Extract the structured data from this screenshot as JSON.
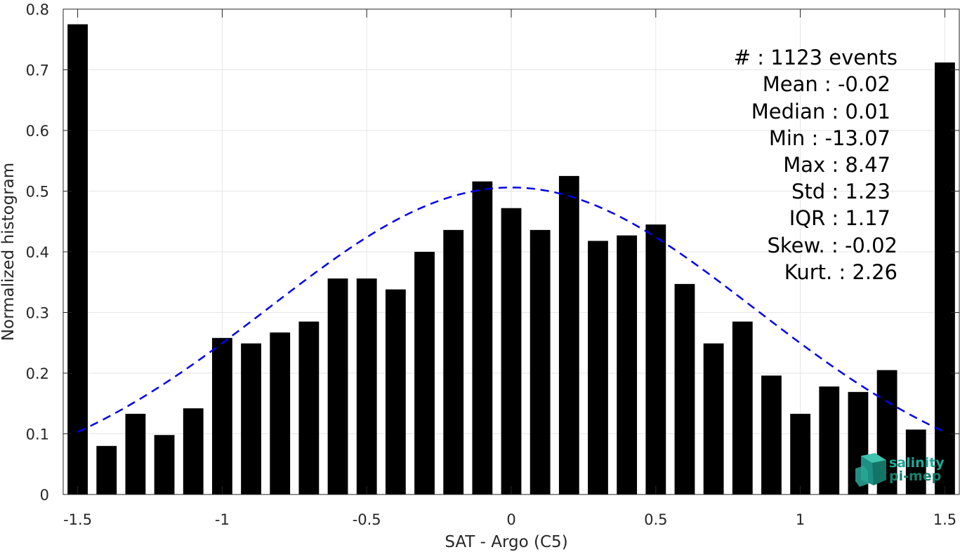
{
  "chart_data": {
    "type": "bar",
    "title": "",
    "xlabel": "SAT - Argo (C5)",
    "ylabel": "Normalized histogram",
    "xlim": [
      -1.55,
      1.55
    ],
    "ylim": [
      0,
      0.8
    ],
    "grid": true,
    "x_ticks": [
      {
        "value": -1.5,
        "label": "-1.5"
      },
      {
        "value": -1,
        "label": "-1"
      },
      {
        "value": -0.5,
        "label": "-0.5"
      },
      {
        "value": 0,
        "label": "0"
      },
      {
        "value": 0.5,
        "label": "0.5"
      },
      {
        "value": 1,
        "label": "1"
      },
      {
        "value": 1.5,
        "label": "1.5"
      }
    ],
    "y_ticks": [
      {
        "value": 0,
        "label": "0"
      },
      {
        "value": 0.1,
        "label": "0.1"
      },
      {
        "value": 0.2,
        "label": "0.2"
      },
      {
        "value": 0.3,
        "label": "0.3"
      },
      {
        "value": 0.4,
        "label": "0.4"
      },
      {
        "value": 0.5,
        "label": "0.5"
      },
      {
        "value": 0.6,
        "label": "0.6"
      },
      {
        "value": 0.7,
        "label": "0.7"
      },
      {
        "value": 0.8,
        "label": "0.8"
      }
    ],
    "bar_color": "#000000",
    "bars": {
      "x": [
        -1.5,
        -1.4,
        -1.3,
        -1.2,
        -1.1,
        -1.0,
        -0.9,
        -0.8,
        -0.7,
        -0.6,
        -0.5,
        -0.4,
        -0.3,
        -0.2,
        -0.1,
        0.0,
        0.1,
        0.2,
        0.3,
        0.4,
        0.5,
        0.6,
        0.7,
        0.8,
        0.9,
        1.0,
        1.1,
        1.2,
        1.3,
        1.4,
        1.5
      ],
      "values": [
        0.775,
        0.08,
        0.133,
        0.098,
        0.142,
        0.258,
        0.249,
        0.267,
        0.285,
        0.356,
        0.356,
        0.338,
        0.4,
        0.436,
        0.516,
        0.472,
        0.436,
        0.525,
        0.418,
        0.427,
        0.445,
        0.347,
        0.249,
        0.285,
        0.196,
        0.133,
        0.178,
        0.169,
        0.205,
        0.107,
        0.712
      ]
    },
    "fit_curve": {
      "type": "normal",
      "style": "dashed",
      "color": "#0000ee",
      "mean": 0,
      "peak": 0.506,
      "value_at_edges": 0.103,
      "x_range": [
        -1.5,
        1.5
      ]
    },
    "stats_lines": [
      "#  : 1123 events",
      "Mean : -0.02",
      "Median : 0.01",
      "Min : -13.07",
      "Max : 8.47",
      "Std : 1.23",
      "IQR : 1.17",
      "Skew. : -0.02",
      "Kurt. : 2.26"
    ]
  },
  "logo": {
    "line1": "salinity",
    "line2": "pi-mep"
  }
}
